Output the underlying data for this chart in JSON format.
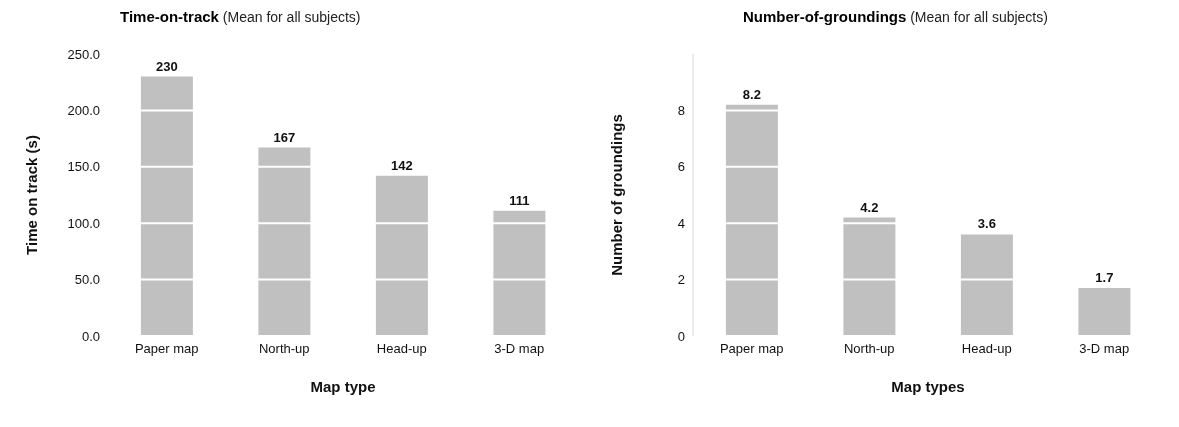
{
  "chart_data": [
    {
      "type": "bar",
      "title": "Time-on-track",
      "subtitle": "(Mean for all subjects)",
      "xlabel": "Map type",
      "ylabel": "Time on track (s)",
      "categories": [
        "Paper map",
        "North-up",
        "Head-up",
        "3-D map"
      ],
      "values": [
        230,
        167,
        142,
        111
      ],
      "color": "#c0c0c0",
      "ylim": [
        0,
        250
      ],
      "yticks": [
        {
          "value": 0,
          "label": "0.0"
        },
        {
          "value": 50,
          "label": "50.0"
        },
        {
          "value": 100,
          "label": "100.0"
        },
        {
          "value": 150,
          "label": "150.0"
        },
        {
          "value": 200,
          "label": "200.0"
        },
        {
          "value": 250,
          "label": "250.0"
        }
      ],
      "grid": "y",
      "data_labels": true
    },
    {
      "type": "bar",
      "title": "Number-of-groundings",
      "subtitle": "(Mean for all subjects)",
      "xlabel": "Map types",
      "ylabel": "Number of groundings",
      "categories": [
        "Paper map",
        "North-up",
        "Head-up",
        "3-D map"
      ],
      "values": [
        8.2,
        4.2,
        3.6,
        1.7
      ],
      "color": "#c0c0c0",
      "ylim": [
        0,
        10
      ],
      "yticks": [
        0,
        2,
        4,
        6,
        8
      ],
      "grid": "y",
      "data_labels": true
    }
  ]
}
